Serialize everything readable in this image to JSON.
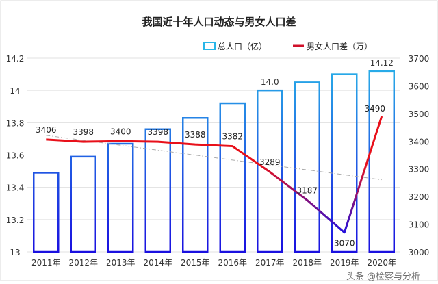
{
  "chart_data": {
    "type": "bar+line",
    "title": "我国近十年人口动态与男女人口差",
    "categories": [
      "2011年",
      "2012年",
      "2013年",
      "2014年",
      "2015年",
      "2016年",
      "2017年",
      "2018年",
      "2019年",
      "2020年"
    ],
    "series": [
      {
        "name": "总人口（亿）",
        "type": "bar",
        "axis": "left",
        "values": [
          13.49,
          13.59,
          13.67,
          13.76,
          13.83,
          13.92,
          14.0,
          14.05,
          14.1,
          14.12
        ]
      },
      {
        "name": "男女人口差（万）",
        "type": "line",
        "axis": "right",
        "values": [
          3406,
          3398,
          3400,
          3398,
          3388,
          3382,
          3289,
          3187,
          3070,
          3490
        ]
      }
    ],
    "bar_labels": [
      {
        "index": 6,
        "text": "14.0"
      },
      {
        "index": 9,
        "text": "14.12"
      }
    ],
    "line_labels": [
      "3406",
      "3398",
      "3400",
      "3398",
      "3388",
      "3382",
      "3289",
      "3187",
      "3070",
      "3490"
    ],
    "trendline": {
      "series": "男女人口差（万）",
      "type": "linear",
      "style": "dash-dot",
      "color": "#aaaaaa"
    },
    "y_left": {
      "range": [
        13,
        14.2
      ],
      "ticks": [
        "13",
        "13.2",
        "13.4",
        "13.6",
        "13.8",
        "14",
        "14.2"
      ]
    },
    "y_right": {
      "range": [
        3000,
        3700
      ],
      "ticks": [
        "3000",
        "3100",
        "3200",
        "3300",
        "3400",
        "3500",
        "3600",
        "3700"
      ]
    },
    "grid": true,
    "legend": "top-right",
    "colors": {
      "bar_top": "#29b6e8",
      "bar_bottom": "#1a10e0",
      "line_top": "#e8101a",
      "line_bottom": "#2010e0"
    }
  },
  "watermark": "头条 @检察与分析"
}
